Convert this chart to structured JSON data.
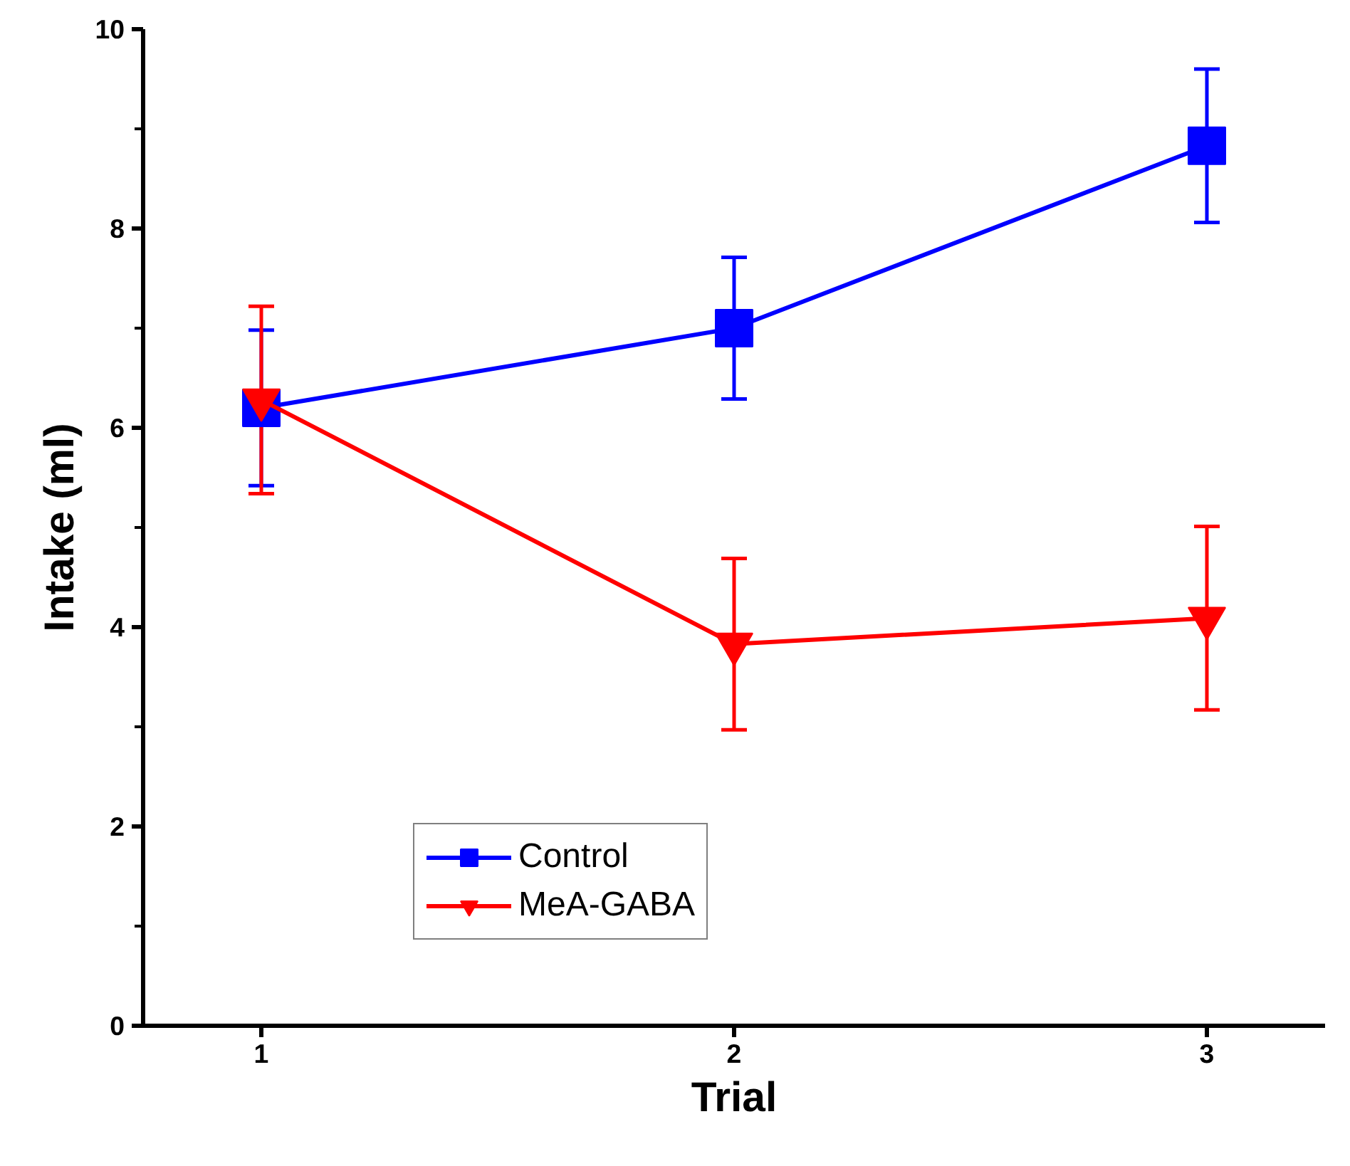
{
  "chart_data": {
    "type": "line",
    "xlabel": "Trial",
    "ylabel": "Intake (ml)",
    "x": [
      1,
      2,
      3
    ],
    "xlim": [
      0.75,
      3.25
    ],
    "xticks": [
      1,
      2,
      3
    ],
    "ylim": [
      0,
      10
    ],
    "yticks": [
      0,
      2,
      4,
      6,
      8,
      10
    ],
    "grid": false,
    "legend": "bottom",
    "line_style": "solid",
    "series": [
      {
        "name": "Control",
        "color": "#0000ff",
        "marker": "square",
        "values": [
          6.2,
          7.0,
          8.83
        ],
        "errors": [
          0.78,
          0.71,
          0.77
        ]
      },
      {
        "name": "MeA-GABA",
        "color": "#ff0000",
        "marker": "triangle",
        "values": [
          6.28,
          3.83,
          4.09
        ],
        "errors": [
          0.94,
          0.86,
          0.92
        ]
      }
    ]
  }
}
